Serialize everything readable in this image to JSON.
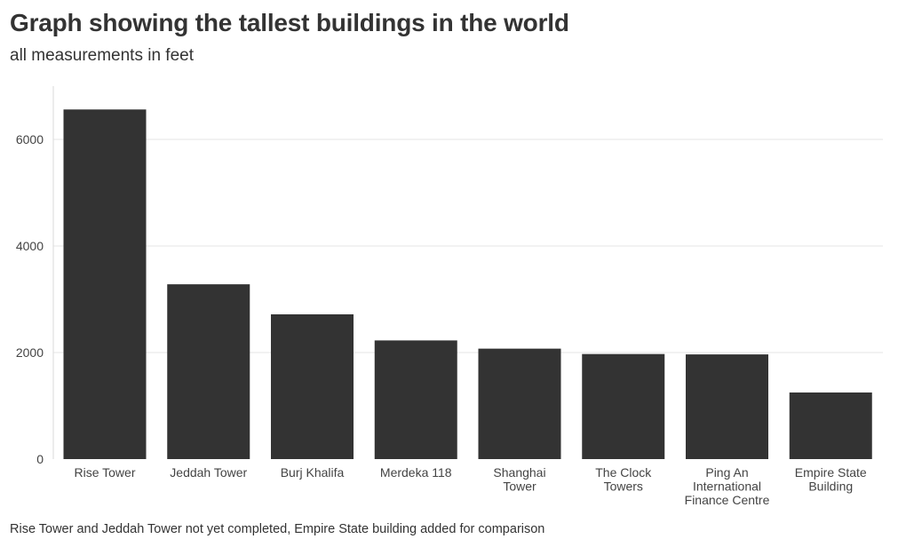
{
  "chart_data": {
    "type": "bar",
    "title": "Graph showing the tallest buildings in the world",
    "subtitle": "all measurements in feet",
    "footnote": "Rise Tower and Jeddah Tower not yet completed, Empire State building added for comparison",
    "categories": [
      [
        "Rise Tower"
      ],
      [
        "Jeddah Tower"
      ],
      [
        "Burj Khalifa"
      ],
      [
        "Merdeka 118"
      ],
      [
        "Shanghai",
        "Tower"
      ],
      [
        "The Clock",
        "Towers"
      ],
      [
        "Ping An",
        "International",
        "Finance Centre"
      ],
      [
        "Empire State",
        "Building"
      ]
    ],
    "values": [
      6562,
      3281,
      2717,
      2227,
      2073,
      1972,
      1965,
      1250
    ],
    "xlabel": "",
    "ylabel": "",
    "ylim": [
      0,
      7000
    ],
    "yticks": [
      0,
      2000,
      4000,
      6000
    ],
    "grid": true,
    "bar_color": "#333333",
    "grid_color": "#e6e6e6"
  }
}
